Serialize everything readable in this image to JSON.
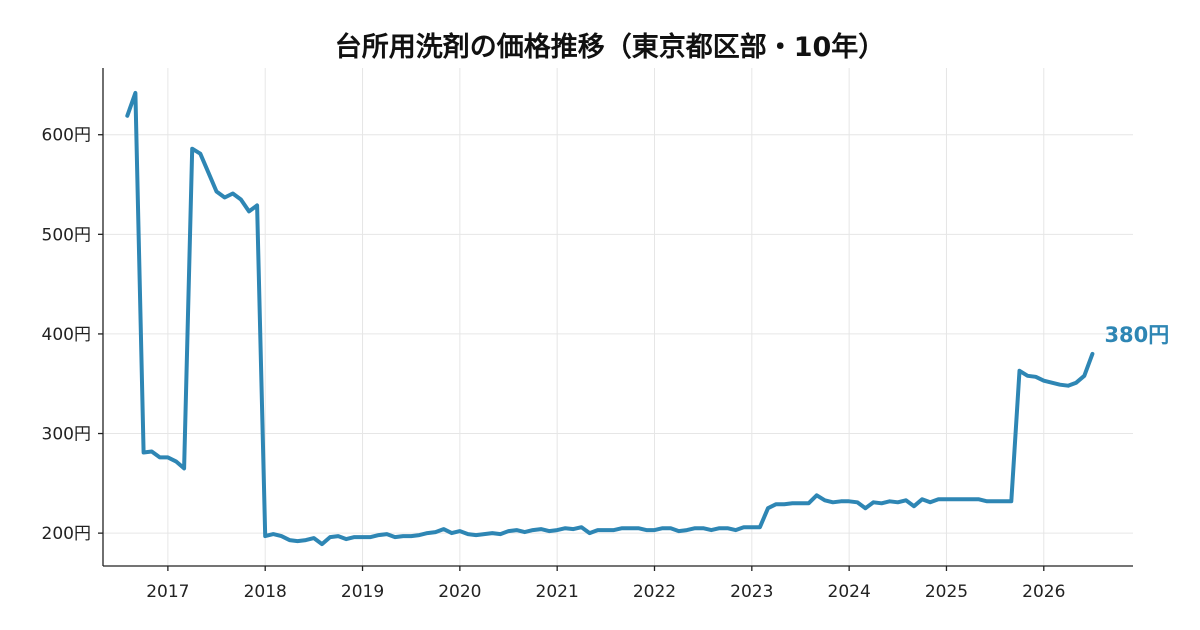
{
  "chart_data": {
    "type": "line",
    "title": "台所用洗剤の価格推移（東京都区部・10年）",
    "xlabel": "",
    "ylabel": "",
    "x_ticks": [
      "2017",
      "2018",
      "2019",
      "2020",
      "2021",
      "2022",
      "2023",
      "2024",
      "2025",
      "2026"
    ],
    "y_ticks": [
      200,
      300,
      400,
      500,
      600
    ],
    "y_tick_suffix": "円",
    "xlim": [
      "2016-05",
      "2026-12"
    ],
    "ylim": [
      167,
      667
    ],
    "grid": true,
    "line_color": "#2e86b4",
    "end_label": "380円",
    "series": [
      {
        "points": [
          [
            "2016-08",
            619
          ],
          [
            "2016-09",
            642
          ],
          [
            "2016-10",
            281
          ],
          [
            "2016-11",
            282
          ],
          [
            "2016-12",
            276
          ],
          [
            "2017-01",
            276
          ],
          [
            "2017-02",
            272
          ],
          [
            "2017-03",
            265
          ],
          [
            "2017-04",
            586
          ],
          [
            "2017-05",
            581
          ],
          [
            "2017-06",
            562
          ],
          [
            "2017-07",
            543
          ],
          [
            "2017-08",
            537
          ],
          [
            "2017-09",
            541
          ],
          [
            "2017-10",
            535
          ],
          [
            "2017-11",
            523
          ],
          [
            "2017-12",
            529
          ],
          [
            "2018-01",
            197
          ],
          [
            "2018-02",
            199
          ],
          [
            "2018-03",
            197
          ],
          [
            "2018-04",
            193
          ],
          [
            "2018-05",
            192
          ],
          [
            "2018-06",
            193
          ],
          [
            "2018-07",
            195
          ],
          [
            "2018-08",
            189
          ],
          [
            "2018-09",
            196
          ],
          [
            "2018-10",
            197
          ],
          [
            "2018-11",
            194
          ],
          [
            "2018-12",
            196
          ],
          [
            "2019-01",
            196
          ],
          [
            "2019-02",
            196
          ],
          [
            "2019-03",
            198
          ],
          [
            "2019-04",
            199
          ],
          [
            "2019-05",
            196
          ],
          [
            "2019-06",
            197
          ],
          [
            "2019-07",
            197
          ],
          [
            "2019-08",
            198
          ],
          [
            "2019-09",
            200
          ],
          [
            "2019-10",
            201
          ],
          [
            "2019-11",
            204
          ],
          [
            "2019-12",
            200
          ],
          [
            "2020-01",
            202
          ],
          [
            "2020-02",
            199
          ],
          [
            "2020-03",
            198
          ],
          [
            "2020-04",
            199
          ],
          [
            "2020-05",
            200
          ],
          [
            "2020-06",
            199
          ],
          [
            "2020-07",
            202
          ],
          [
            "2020-08",
            203
          ],
          [
            "2020-09",
            201
          ],
          [
            "2020-10",
            203
          ],
          [
            "2020-11",
            204
          ],
          [
            "2020-12",
            202
          ],
          [
            "2021-01",
            203
          ],
          [
            "2021-02",
            205
          ],
          [
            "2021-03",
            204
          ],
          [
            "2021-04",
            206
          ],
          [
            "2021-05",
            200
          ],
          [
            "2021-06",
            203
          ],
          [
            "2021-07",
            203
          ],
          [
            "2021-08",
            203
          ],
          [
            "2021-09",
            205
          ],
          [
            "2021-10",
            205
          ],
          [
            "2021-11",
            205
          ],
          [
            "2021-12",
            203
          ],
          [
            "2022-01",
            203
          ],
          [
            "2022-02",
            205
          ],
          [
            "2022-03",
            205
          ],
          [
            "2022-04",
            202
          ],
          [
            "2022-05",
            203
          ],
          [
            "2022-06",
            205
          ],
          [
            "2022-07",
            205
          ],
          [
            "2022-08",
            203
          ],
          [
            "2022-09",
            205
          ],
          [
            "2022-10",
            205
          ],
          [
            "2022-11",
            203
          ],
          [
            "2022-12",
            206
          ],
          [
            "2023-01",
            206
          ],
          [
            "2023-02",
            206
          ],
          [
            "2023-03",
            225
          ],
          [
            "2023-04",
            229
          ],
          [
            "2023-05",
            229
          ],
          [
            "2023-06",
            230
          ],
          [
            "2023-07",
            230
          ],
          [
            "2023-08",
            230
          ],
          [
            "2023-09",
            238
          ],
          [
            "2023-10",
            233
          ],
          [
            "2023-11",
            231
          ],
          [
            "2023-12",
            232
          ],
          [
            "2024-01",
            232
          ],
          [
            "2024-02",
            231
          ],
          [
            "2024-03",
            225
          ],
          [
            "2024-04",
            231
          ],
          [
            "2024-05",
            230
          ],
          [
            "2024-06",
            232
          ],
          [
            "2024-07",
            231
          ],
          [
            "2024-08",
            233
          ],
          [
            "2024-09",
            227
          ],
          [
            "2024-10",
            234
          ],
          [
            "2024-11",
            231
          ],
          [
            "2024-12",
            234
          ],
          [
            "2025-01",
            234
          ],
          [
            "2025-02",
            234
          ],
          [
            "2025-03",
            234
          ],
          [
            "2025-04",
            234
          ],
          [
            "2025-05",
            234
          ],
          [
            "2025-06",
            232
          ],
          [
            "2025-07",
            232
          ],
          [
            "2025-08",
            232
          ],
          [
            "2025-09",
            232
          ],
          [
            "2025-10",
            363
          ],
          [
            "2025-11",
            358
          ],
          [
            "2025-12",
            357
          ],
          [
            "2026-01",
            353
          ],
          [
            "2026-02",
            351
          ],
          [
            "2026-03",
            349
          ],
          [
            "2026-04",
            348
          ],
          [
            "2026-05",
            351
          ],
          [
            "2026-06",
            358
          ],
          [
            "2026-07",
            380
          ]
        ]
      }
    ]
  }
}
